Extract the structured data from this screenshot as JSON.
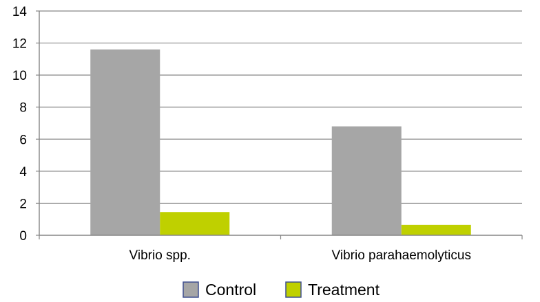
{
  "chart_data": {
    "type": "bar",
    "categories": [
      "Vibrio spp.",
      "Vibrio parahaemolyticus"
    ],
    "series": [
      {
        "name": "Control",
        "values": [
          11.6,
          6.8
        ],
        "color": "#a6a6a6"
      },
      {
        "name": "Treatment",
        "values": [
          1.45,
          0.65
        ],
        "color": "#bfd000"
      }
    ],
    "title": "",
    "xlabel": "",
    "ylabel": "",
    "ylim": [
      0,
      14
    ],
    "yticks": [
      "0",
      "2",
      "4",
      "6",
      "8",
      "10",
      "12",
      "14"
    ],
    "grid": true,
    "legend_position": "bottom"
  }
}
